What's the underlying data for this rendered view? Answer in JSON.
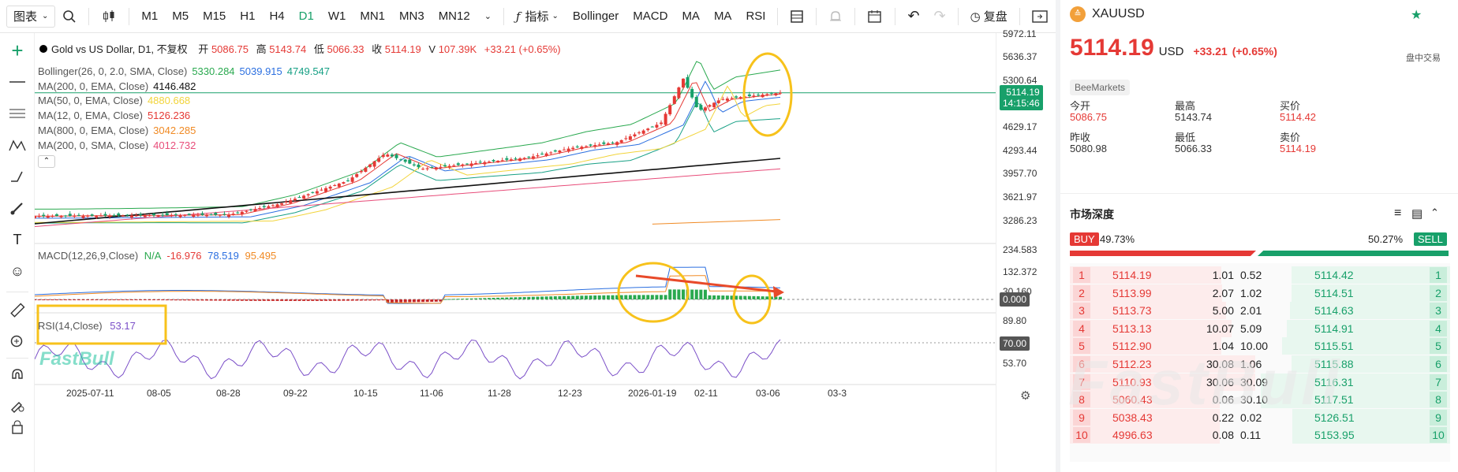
{
  "toolbar": {
    "chart_type": "图表",
    "timeframes": [
      "M1",
      "M5",
      "M15",
      "H1",
      "H4",
      "D1",
      "W1",
      "MN1",
      "MN3",
      "MN12"
    ],
    "active_timeframe": "D1",
    "indicators_label": "指标",
    "indicator_buttons": [
      "Bollinger",
      "MACD",
      "MA",
      "MA",
      "RSI"
    ],
    "replay_label": "复盘"
  },
  "chart": {
    "symbol_title": "Gold vs US Dollar, D1, 不复权",
    "ohlc": {
      "open_label": "开",
      "open": "5086.75",
      "high_label": "高",
      "high": "5143.74",
      "low_label": "低",
      "low": "5066.33",
      "close_label": "收",
      "close": "5114.19",
      "vol_label": "V",
      "volume": "107.39K",
      "change": "+33.21 (+0.65%)"
    },
    "indicators": [
      {
        "label": "Bollinger(26, 0, 2.0, SMA, Close)",
        "values": [
          "5330.284",
          "5039.915",
          "4749.547"
        ],
        "colors": [
          "#2aa94f",
          "#2b6fe0",
          "#17a085"
        ]
      },
      {
        "label": "MA(200, 0, EMA, Close)",
        "values": [
          "4146.482"
        ],
        "colors": [
          "#111111"
        ]
      },
      {
        "label": "MA(50, 0, EMA, Close)",
        "values": [
          "4880.668"
        ],
        "colors": [
          "#f2d43b"
        ]
      },
      {
        "label": "MA(12, 0, EMA, Close)",
        "values": [
          "5126.236"
        ],
        "colors": [
          "#e53935"
        ]
      },
      {
        "label": "MA(800, 0, EMA, Close)",
        "values": [
          "3042.285"
        ],
        "colors": [
          "#f08a24"
        ]
      },
      {
        "label": "MA(200, 0, SMA, Close)",
        "values": [
          "4012.732"
        ],
        "colors": [
          "#e84d7a"
        ]
      }
    ],
    "macd": {
      "label": "MACD(12,26,9,Close)",
      "values": [
        "N/A",
        "-16.976",
        "78.519",
        "95.495"
      ],
      "colors": [
        "#2aa94f",
        "#e53935",
        "#2b6fe0",
        "#f08a24"
      ]
    },
    "rsi": {
      "label": "RSI(14,Close)",
      "value": "53.17"
    },
    "price_axis": [
      "5972.11",
      "5636.37",
      "5300.64",
      "4629.17",
      "4293.44",
      "3957.70",
      "3621.97",
      "3286.23"
    ],
    "macd_axis": [
      "234.583",
      "132.372",
      "30.160"
    ],
    "rsi_axis": [
      "89.80",
      "53.70"
    ],
    "price_tag": {
      "price": "5114.19",
      "countdown": "14:15:46"
    },
    "macd_tag": "0.000",
    "rsi_tag": "70.00",
    "dates": [
      "2025-07-11",
      "08-05",
      "08-28",
      "09-22",
      "10-15",
      "11-06",
      "11-28",
      "12-23",
      "2026-01-19",
      "02-11",
      "03-06",
      "03-3"
    ],
    "watermark": "FastBull"
  },
  "quote": {
    "symbol": "XAUUSD",
    "price": "5114.19",
    "currency": "USD",
    "change": "+33.21",
    "change_pct": "(+0.65%)",
    "session": "盘中交易",
    "provider": "BeeMarkets",
    "stats": [
      {
        "label": "今开",
        "value": "5086.75",
        "color": "#e53935"
      },
      {
        "label": "最高",
        "value": "5143.74",
        "color": "#333333"
      },
      {
        "label": "买价",
        "value": "5114.42",
        "color": "#e53935"
      },
      {
        "label": "昨收",
        "value": "5080.98",
        "color": "#333333"
      },
      {
        "label": "最低",
        "value": "5066.33",
        "color": "#333333"
      },
      {
        "label": "卖价",
        "value": "5114.19",
        "color": "#e53935"
      }
    ]
  },
  "depth": {
    "title": "市场深度",
    "buy_label": "BUY",
    "buy_pct": "49.73%",
    "sell_label": "SELL",
    "sell_pct": "50.27%",
    "rows": [
      {
        "lvl": "1",
        "bid": "5114.19",
        "bid_vol": "1.01",
        "ask_vol": "0.52",
        "ask": "5114.42"
      },
      {
        "lvl": "2",
        "bid": "5113.99",
        "bid_vol": "2.07",
        "ask_vol": "1.02",
        "ask": "5114.51"
      },
      {
        "lvl": "3",
        "bid": "5113.73",
        "bid_vol": "5.00",
        "ask_vol": "2.01",
        "ask": "5114.63"
      },
      {
        "lvl": "4",
        "bid": "5113.13",
        "bid_vol": "10.07",
        "ask_vol": "5.09",
        "ask": "5114.91"
      },
      {
        "lvl": "5",
        "bid": "5112.90",
        "bid_vol": "1.04",
        "ask_vol": "10.00",
        "ask": "5115.51"
      },
      {
        "lvl": "6",
        "bid": "5112.23",
        "bid_vol": "30.08",
        "ask_vol": "1.06",
        "ask": "5115.88"
      },
      {
        "lvl": "7",
        "bid": "5110.93",
        "bid_vol": "30.06",
        "ask_vol": "30.09",
        "ask": "5116.31"
      },
      {
        "lvl": "8",
        "bid": "5060.43",
        "bid_vol": "0.06",
        "ask_vol": "30.10",
        "ask": "5117.51"
      },
      {
        "lvl": "9",
        "bid": "5038.43",
        "bid_vol": "0.22",
        "ask_vol": "0.02",
        "ask": "5126.51"
      },
      {
        "lvl": "10",
        "bid": "4996.63",
        "bid_vol": "0.08",
        "ask_vol": "0.11",
        "ask": "5153.95"
      }
    ]
  },
  "colors": {
    "up": "#e53935",
    "down": "#18a06a",
    "accent": "#18a06a",
    "annotation": "#f7c21b"
  }
}
